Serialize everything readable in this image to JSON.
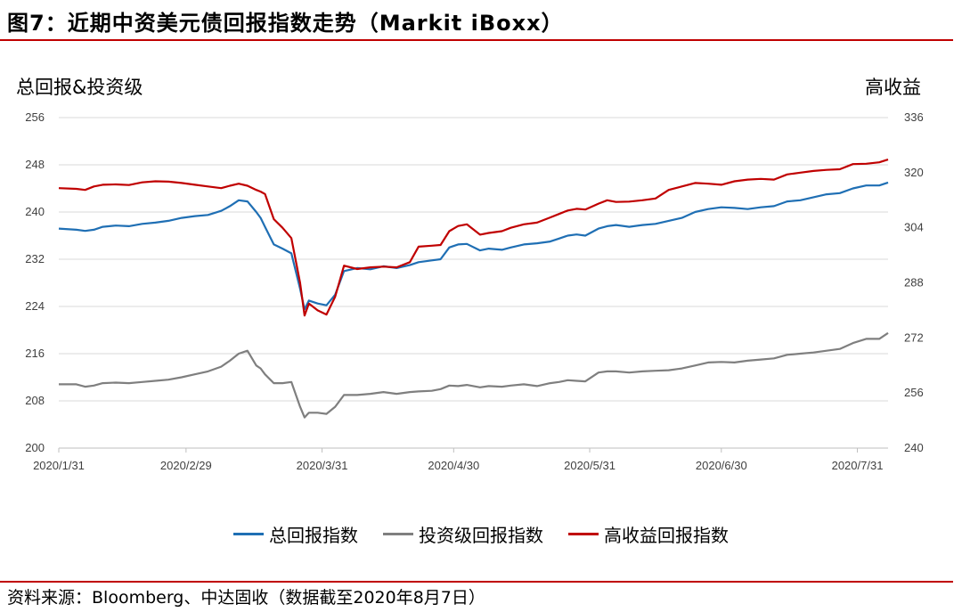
{
  "figure": {
    "title": "图7：近期中资美元债回报指数走势（Markit iBoxx）",
    "source": "资料来源：Bloomberg、中达固收（数据截至2020年8月7日）",
    "rule_color": "#c00000"
  },
  "chart_data": {
    "type": "line",
    "y_left": {
      "label": "总回报&投资级",
      "lim": [
        200,
        256
      ],
      "ticks": [
        "200",
        "208",
        "216",
        "224",
        "232",
        "240",
        "248",
        "256"
      ]
    },
    "y_right": {
      "label": "高收益",
      "lim": [
        240,
        336
      ],
      "ticks": [
        "240",
        "256",
        "272",
        "288",
        "304",
        "320",
        "336"
      ]
    },
    "x_axis": {
      "start": "2020-01-31",
      "end": "2020-08-07",
      "tick_dates": [
        "2020-01-31",
        "2020-02-29",
        "2020-03-31",
        "2020-04-30",
        "2020-05-31",
        "2020-06-30",
        "2020-07-31"
      ],
      "tick_labels": [
        "2020/1/31",
        "2020/2/29",
        "2020/3/31",
        "2020/4/30",
        "2020/5/31",
        "2020/6/30",
        "2020/7/31"
      ]
    },
    "grid": "horizontal",
    "legend_position": "bottom",
    "series": [
      {
        "name": "总回报指数",
        "axis": "left",
        "color": "#1f6fb4",
        "points": [
          [
            "2020-01-31",
            237.2
          ],
          [
            "2020-02-04",
            237.0
          ],
          [
            "2020-02-06",
            236.8
          ],
          [
            "2020-02-08",
            237.0
          ],
          [
            "2020-02-10",
            237.5
          ],
          [
            "2020-02-13",
            237.7
          ],
          [
            "2020-02-16",
            237.6
          ],
          [
            "2020-02-19",
            238.0
          ],
          [
            "2020-02-22",
            238.2
          ],
          [
            "2020-02-25",
            238.5
          ],
          [
            "2020-02-28",
            239.0
          ],
          [
            "2020-03-02",
            239.3
          ],
          [
            "2020-03-05",
            239.5
          ],
          [
            "2020-03-08",
            240.2
          ],
          [
            "2020-03-10",
            241.0
          ],
          [
            "2020-03-12",
            242.0
          ],
          [
            "2020-03-14",
            241.8
          ],
          [
            "2020-03-16",
            240.0
          ],
          [
            "2020-03-17",
            239.0
          ],
          [
            "2020-03-18",
            237.5
          ],
          [
            "2020-03-20",
            234.5
          ],
          [
            "2020-03-22",
            233.8
          ],
          [
            "2020-03-24",
            233.0
          ],
          [
            "2020-03-26",
            227.0
          ],
          [
            "2020-03-27",
            223.5
          ],
          [
            "2020-03-28",
            225.0
          ],
          [
            "2020-03-30",
            224.5
          ],
          [
            "2020-04-01",
            224.2
          ],
          [
            "2020-04-03",
            226.0
          ],
          [
            "2020-04-05",
            230.0
          ],
          [
            "2020-04-08",
            230.5
          ],
          [
            "2020-04-11",
            230.3
          ],
          [
            "2020-04-14",
            230.8
          ],
          [
            "2020-04-17",
            230.5
          ],
          [
            "2020-04-20",
            231.0
          ],
          [
            "2020-04-22",
            231.5
          ],
          [
            "2020-04-25",
            231.8
          ],
          [
            "2020-04-27",
            232.0
          ],
          [
            "2020-04-29",
            234.0
          ],
          [
            "2020-05-01",
            234.5
          ],
          [
            "2020-05-03",
            234.6
          ],
          [
            "2020-05-06",
            233.5
          ],
          [
            "2020-05-08",
            233.8
          ],
          [
            "2020-05-11",
            233.6
          ],
          [
            "2020-05-13",
            234.0
          ],
          [
            "2020-05-16",
            234.5
          ],
          [
            "2020-05-19",
            234.7
          ],
          [
            "2020-05-22",
            235.0
          ],
          [
            "2020-05-24",
            235.5
          ],
          [
            "2020-05-26",
            236.0
          ],
          [
            "2020-05-28",
            236.2
          ],
          [
            "2020-05-30",
            236.0
          ],
          [
            "2020-06-02",
            237.2
          ],
          [
            "2020-06-04",
            237.6
          ],
          [
            "2020-06-06",
            237.8
          ],
          [
            "2020-06-09",
            237.5
          ],
          [
            "2020-06-12",
            237.8
          ],
          [
            "2020-06-15",
            238.0
          ],
          [
            "2020-06-18",
            238.5
          ],
          [
            "2020-06-21",
            239.0
          ],
          [
            "2020-06-24",
            240.0
          ],
          [
            "2020-06-27",
            240.5
          ],
          [
            "2020-06-30",
            240.8
          ],
          [
            "2020-07-03",
            240.7
          ],
          [
            "2020-07-06",
            240.5
          ],
          [
            "2020-07-09",
            240.8
          ],
          [
            "2020-07-12",
            241.0
          ],
          [
            "2020-07-15",
            241.8
          ],
          [
            "2020-07-18",
            242.0
          ],
          [
            "2020-07-21",
            242.5
          ],
          [
            "2020-07-24",
            243.0
          ],
          [
            "2020-07-27",
            243.2
          ],
          [
            "2020-07-30",
            244.0
          ],
          [
            "2020-08-02",
            244.5
          ],
          [
            "2020-08-05",
            244.5
          ],
          [
            "2020-08-07",
            245.0
          ]
        ]
      },
      {
        "name": "投资级回报指数",
        "axis": "left",
        "color": "#7f7f7f",
        "points": [
          [
            "2020-01-31",
            210.8
          ],
          [
            "2020-02-04",
            210.8
          ],
          [
            "2020-02-06",
            210.4
          ],
          [
            "2020-02-08",
            210.6
          ],
          [
            "2020-02-10",
            211.0
          ],
          [
            "2020-02-13",
            211.1
          ],
          [
            "2020-02-16",
            211.0
          ],
          [
            "2020-02-19",
            211.2
          ],
          [
            "2020-02-22",
            211.4
          ],
          [
            "2020-02-25",
            211.6
          ],
          [
            "2020-02-28",
            212.0
          ],
          [
            "2020-03-02",
            212.5
          ],
          [
            "2020-03-05",
            213.0
          ],
          [
            "2020-03-08",
            213.8
          ],
          [
            "2020-03-10",
            214.8
          ],
          [
            "2020-03-12",
            216.0
          ],
          [
            "2020-03-14",
            216.5
          ],
          [
            "2020-03-16",
            214.0
          ],
          [
            "2020-03-17",
            213.5
          ],
          [
            "2020-03-18",
            212.5
          ],
          [
            "2020-03-20",
            211.0
          ],
          [
            "2020-03-22",
            211.0
          ],
          [
            "2020-03-24",
            211.2
          ],
          [
            "2020-03-26",
            207.0
          ],
          [
            "2020-03-27",
            205.2
          ],
          [
            "2020-03-28",
            206.0
          ],
          [
            "2020-03-30",
            206.0
          ],
          [
            "2020-04-01",
            205.8
          ],
          [
            "2020-04-03",
            207.0
          ],
          [
            "2020-04-05",
            209.0
          ],
          [
            "2020-04-08",
            209.0
          ],
          [
            "2020-04-11",
            209.2
          ],
          [
            "2020-04-14",
            209.5
          ],
          [
            "2020-04-17",
            209.2
          ],
          [
            "2020-04-20",
            209.5
          ],
          [
            "2020-04-22",
            209.6
          ],
          [
            "2020-04-25",
            209.7
          ],
          [
            "2020-04-27",
            210.0
          ],
          [
            "2020-04-29",
            210.6
          ],
          [
            "2020-05-01",
            210.5
          ],
          [
            "2020-05-03",
            210.7
          ],
          [
            "2020-05-06",
            210.3
          ],
          [
            "2020-05-08",
            210.5
          ],
          [
            "2020-05-11",
            210.4
          ],
          [
            "2020-05-13",
            210.6
          ],
          [
            "2020-05-16",
            210.8
          ],
          [
            "2020-05-19",
            210.5
          ],
          [
            "2020-05-22",
            211.0
          ],
          [
            "2020-05-24",
            211.2
          ],
          [
            "2020-05-26",
            211.5
          ],
          [
            "2020-05-28",
            211.4
          ],
          [
            "2020-05-30",
            211.3
          ],
          [
            "2020-06-02",
            212.8
          ],
          [
            "2020-06-04",
            213.0
          ],
          [
            "2020-06-06",
            213.0
          ],
          [
            "2020-06-09",
            212.8
          ],
          [
            "2020-06-12",
            213.0
          ],
          [
            "2020-06-15",
            213.1
          ],
          [
            "2020-06-18",
            213.2
          ],
          [
            "2020-06-21",
            213.5
          ],
          [
            "2020-06-24",
            214.0
          ],
          [
            "2020-06-27",
            214.5
          ],
          [
            "2020-06-30",
            214.6
          ],
          [
            "2020-07-03",
            214.5
          ],
          [
            "2020-07-06",
            214.8
          ],
          [
            "2020-07-09",
            215.0
          ],
          [
            "2020-07-12",
            215.2
          ],
          [
            "2020-07-15",
            215.8
          ],
          [
            "2020-07-18",
            216.0
          ],
          [
            "2020-07-21",
            216.2
          ],
          [
            "2020-07-24",
            216.5
          ],
          [
            "2020-07-27",
            216.8
          ],
          [
            "2020-07-30",
            217.8
          ],
          [
            "2020-08-02",
            218.5
          ],
          [
            "2020-08-05",
            218.5
          ],
          [
            "2020-08-07",
            219.5
          ]
        ]
      },
      {
        "name": "高收益回报指数",
        "axis": "right",
        "color": "#c00000",
        "points": [
          [
            "2020-01-31",
            315.5
          ],
          [
            "2020-02-04",
            315.3
          ],
          [
            "2020-02-06",
            315.0
          ],
          [
            "2020-02-08",
            316.0
          ],
          [
            "2020-02-10",
            316.5
          ],
          [
            "2020-02-13",
            316.6
          ],
          [
            "2020-02-16",
            316.4
          ],
          [
            "2020-02-19",
            317.2
          ],
          [
            "2020-02-22",
            317.5
          ],
          [
            "2020-02-25",
            317.4
          ],
          [
            "2020-02-28",
            317.0
          ],
          [
            "2020-03-02",
            316.5
          ],
          [
            "2020-03-05",
            316.0
          ],
          [
            "2020-03-08",
            315.5
          ],
          [
            "2020-03-10",
            316.2
          ],
          [
            "2020-03-12",
            316.8
          ],
          [
            "2020-03-14",
            316.2
          ],
          [
            "2020-03-16",
            315.0
          ],
          [
            "2020-03-17",
            314.5
          ],
          [
            "2020-03-18",
            313.8
          ],
          [
            "2020-03-20",
            306.5
          ],
          [
            "2020-03-22",
            304.0
          ],
          [
            "2020-03-24",
            301.0
          ],
          [
            "2020-03-26",
            288.0
          ],
          [
            "2020-03-27",
            278.5
          ],
          [
            "2020-03-28",
            282.0
          ],
          [
            "2020-03-30",
            280.0
          ],
          [
            "2020-04-01",
            278.8
          ],
          [
            "2020-04-03",
            284.0
          ],
          [
            "2020-04-05",
            293.0
          ],
          [
            "2020-04-08",
            292.0
          ],
          [
            "2020-04-11",
            292.5
          ],
          [
            "2020-04-14",
            292.7
          ],
          [
            "2020-04-17",
            292.5
          ],
          [
            "2020-04-20",
            294.0
          ],
          [
            "2020-04-22",
            298.5
          ],
          [
            "2020-04-25",
            298.8
          ],
          [
            "2020-04-27",
            299.0
          ],
          [
            "2020-04-29",
            303.0
          ],
          [
            "2020-05-01",
            304.5
          ],
          [
            "2020-05-03",
            305.0
          ],
          [
            "2020-05-06",
            302.0
          ],
          [
            "2020-05-08",
            302.5
          ],
          [
            "2020-05-11",
            303.0
          ],
          [
            "2020-05-13",
            304.0
          ],
          [
            "2020-05-16",
            305.0
          ],
          [
            "2020-05-19",
            305.5
          ],
          [
            "2020-05-22",
            307.0
          ],
          [
            "2020-05-24",
            308.0
          ],
          [
            "2020-05-26",
            309.0
          ],
          [
            "2020-05-28",
            309.5
          ],
          [
            "2020-05-30",
            309.3
          ],
          [
            "2020-06-02",
            311.0
          ],
          [
            "2020-06-04",
            312.0
          ],
          [
            "2020-06-06",
            311.5
          ],
          [
            "2020-06-09",
            311.6
          ],
          [
            "2020-06-12",
            312.0
          ],
          [
            "2020-06-15",
            312.5
          ],
          [
            "2020-06-18",
            315.0
          ],
          [
            "2020-06-21",
            316.0
          ],
          [
            "2020-06-24",
            317.0
          ],
          [
            "2020-06-27",
            316.8
          ],
          [
            "2020-06-30",
            316.5
          ],
          [
            "2020-07-03",
            317.5
          ],
          [
            "2020-07-06",
            318.0
          ],
          [
            "2020-07-09",
            318.2
          ],
          [
            "2020-07-12",
            318.0
          ],
          [
            "2020-07-15",
            319.5
          ],
          [
            "2020-07-18",
            320.0
          ],
          [
            "2020-07-21",
            320.5
          ],
          [
            "2020-07-24",
            320.8
          ],
          [
            "2020-07-27",
            321.0
          ],
          [
            "2020-07-30",
            322.5
          ],
          [
            "2020-08-02",
            322.6
          ],
          [
            "2020-08-05",
            323.0
          ],
          [
            "2020-08-07",
            323.8
          ]
        ]
      }
    ]
  }
}
